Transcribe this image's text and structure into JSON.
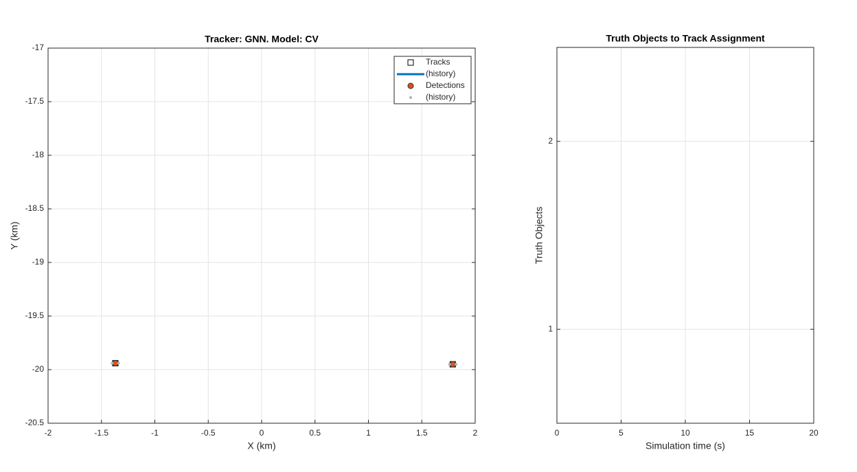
{
  "chart_data": [
    {
      "type": "scatter",
      "title": "Tracker: GNN. Model: CV",
      "xlabel": "X (km)",
      "ylabel": "Y (km)",
      "xlim": [
        -2,
        2
      ],
      "xticks": [
        -2,
        -1.5,
        -1,
        -0.5,
        0,
        0.5,
        1,
        1.5,
        2
      ],
      "ylim": [
        -20.5,
        -17
      ],
      "yticks": [
        -20.5,
        -20,
        -19.5,
        -19,
        -18.5,
        -18,
        -17.5,
        -17
      ],
      "grid": true,
      "legend": "upper right",
      "series": [
        {
          "name": "Tracks",
          "marker": "square",
          "color": "#000000",
          "x": [
            -1.37,
            1.79
          ],
          "y": [
            -19.94,
            -19.95
          ]
        },
        {
          "name": "(history)",
          "marker": "line",
          "color": "#0072bd",
          "x": [],
          "y": []
        },
        {
          "name": "Detections",
          "marker": "circle",
          "color": "#d95319",
          "x": [
            -1.37,
            1.79
          ],
          "y": [
            -19.94,
            -19.95
          ]
        },
        {
          "name": "(history)",
          "marker": "dot",
          "color": "#b0b0b0",
          "x": [
            -1.4,
            -1.34,
            1.76,
            1.82
          ],
          "y": [
            -19.94,
            -19.94,
            -19.95,
            -19.95
          ]
        }
      ]
    },
    {
      "type": "line",
      "title": "Truth Objects to Track Assignment",
      "xlabel": "Simulation time (s)",
      "ylabel": "Truth Objects",
      "xlim": [
        0,
        20
      ],
      "xticks": [
        0,
        5,
        10,
        15,
        20
      ],
      "ylim": [
        0.5,
        2.5
      ],
      "yticks": [
        1,
        2
      ],
      "grid": true,
      "series": []
    }
  ]
}
